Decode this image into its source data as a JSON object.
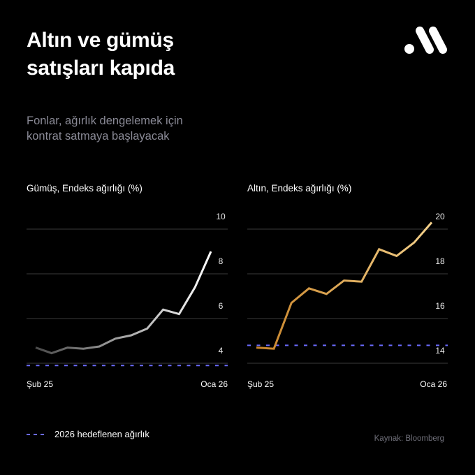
{
  "header": {
    "title_lines": [
      "Altın ve gümüş",
      "satışları kapıda"
    ],
    "subtitle_lines": [
      "Fonlar, ağırlık dengelemek için",
      "kontrat satmaya başlayacak"
    ],
    "logo": "brand-logo-icon"
  },
  "legend": {
    "label": "2026 hedeflenen ağırlık",
    "color": "#6b6bff"
  },
  "source": "Kaynak: Bloomberg",
  "colors": {
    "background": "#000000",
    "gridline": "#3a3a3a",
    "target_dashed": "#6b6bff",
    "silver_start": "#4a4a4a",
    "silver_end": "#ffffff",
    "gold_start": "#c8842a",
    "gold_end": "#f3d08a"
  },
  "chart_data": [
    {
      "type": "line",
      "title": "Gümüş, Endeks ağırlığı (%)",
      "xlabel": "",
      "ylabel": "Endeks ağırlığı (%)",
      "x_tick_labels": [
        "Şub 25",
        "Oca 26"
      ],
      "y_ticks": [
        4,
        6,
        8,
        10
      ],
      "ylim": [
        3.2,
        10.6
      ],
      "grid": true,
      "x": [
        1,
        2,
        3,
        4,
        5,
        6,
        7,
        8,
        9,
        10,
        11,
        12
      ],
      "series": [
        {
          "name": "Gümüş",
          "values": [
            4.7,
            4.45,
            4.7,
            4.65,
            4.75,
            5.1,
            5.25,
            5.55,
            6.4,
            6.2,
            7.4,
            9.0
          ]
        },
        {
          "name": "2026 hedeflenen ağırlık",
          "values": [
            3.9,
            3.9,
            3.9,
            3.9,
            3.9,
            3.9,
            3.9,
            3.9,
            3.9,
            3.9,
            3.9,
            3.9
          ],
          "style": "dashed"
        }
      ]
    },
    {
      "type": "line",
      "title": "Altın, Endeks ağırlığı (%)",
      "xlabel": "",
      "ylabel": "Endeks ağırlığı (%)",
      "x_tick_labels": [
        "Şub 25",
        "Oca 26"
      ],
      "y_ticks": [
        14,
        16,
        18,
        20
      ],
      "ylim": [
        13.2,
        20.6
      ],
      "grid": true,
      "x": [
        1,
        2,
        3,
        4,
        5,
        6,
        7,
        8,
        9,
        10,
        11
      ],
      "series": [
        {
          "name": "Altın",
          "values": [
            14.7,
            14.65,
            16.7,
            17.35,
            17.1,
            17.7,
            17.65,
            19.1,
            18.8,
            19.4,
            20.3
          ]
        },
        {
          "name": "2026 hedeflenen ağırlık",
          "values": [
            14.8,
            14.8,
            14.8,
            14.8,
            14.8,
            14.8,
            14.8,
            14.8,
            14.8,
            14.8,
            14.8
          ],
          "style": "dashed"
        }
      ]
    }
  ]
}
